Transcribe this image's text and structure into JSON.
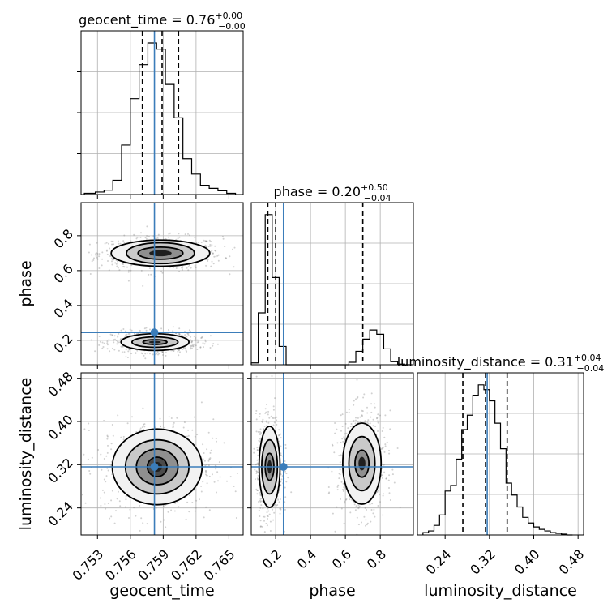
{
  "chart_data": {
    "type": "corner",
    "params": [
      "geocent_time",
      "phase",
      "luminosity_distance"
    ],
    "truth": {
      "geocent_time": 0.7582,
      "phase": 0.245,
      "luminosity_distance": 0.316
    },
    "truth_color": "#3b7dba",
    "grid": true,
    "axes": {
      "geocent_time": {
        "label": "geocent_time",
        "range": [
          0.7515,
          0.7663
        ],
        "ticks": [
          0.753,
          0.756,
          0.759,
          0.762,
          0.765
        ],
        "tick_labels": [
          "0.753",
          "0.756",
          "0.759",
          "0.762",
          "0.765"
        ]
      },
      "phase": {
        "label": "phase",
        "range": [
          0.06,
          0.99
        ],
        "ticks": [
          0.2,
          0.4,
          0.6,
          0.8
        ],
        "tick_labels": [
          "0.2",
          "0.4",
          "0.6",
          "0.8"
        ]
      },
      "luminosity_distance": {
        "label": "luminosity_distance",
        "range": [
          0.19,
          0.49
        ],
        "ticks": [
          0.24,
          0.32,
          0.4,
          0.48
        ],
        "tick_labels": [
          "0.24",
          "0.32",
          "0.40",
          "0.48"
        ]
      }
    },
    "marginals": [
      {
        "param": "geocent_time",
        "title": {
          "prefix": "geocent_time = ",
          "median": "0.76",
          "upper": "+0.00",
          "lower": "−0.00"
        },
        "quantiles": [
          0.7571,
          0.7589,
          0.7604
        ],
        "bin_edges": [
          0.7518,
          0.7528,
          0.7536,
          0.7544,
          0.7552,
          0.756,
          0.7568,
          0.7576,
          0.7584,
          0.7592,
          0.76,
          0.7608,
          0.7616,
          0.7624,
          0.7632,
          0.764,
          0.7648,
          0.7656
        ],
        "counts": [
          2,
          4,
          7,
          23,
          80,
          155,
          210,
          245,
          235,
          178,
          124,
          58,
          33,
          15,
          10,
          6,
          2
        ]
      },
      {
        "param": "phase",
        "title": {
          "prefix": "phase = ",
          "median": "0.20",
          "upper": "+0.50",
          "lower": "−0.04"
        },
        "quantiles": [
          0.155,
          0.2,
          0.7
        ],
        "bin_edges": [
          0.06,
          0.1,
          0.14,
          0.18,
          0.22,
          0.26,
          0.3,
          0.34,
          0.38,
          0.42,
          0.46,
          0.5,
          0.54,
          0.58,
          0.62,
          0.66,
          0.7,
          0.74,
          0.78,
          0.82,
          0.86,
          0.9,
          0.94,
          0.98
        ],
        "counts": [
          3,
          85,
          246,
          143,
          30,
          0,
          0,
          0,
          0,
          0,
          0,
          0,
          0,
          0,
          4,
          22,
          42,
          57,
          50,
          26,
          5,
          1,
          0
        ]
      },
      {
        "param": "luminosity_distance",
        "title": {
          "prefix": "luminosity_distance = ",
          "median": "0.31",
          "upper": "+0.04",
          "lower": "−0.04"
        },
        "quantiles": [
          0.272,
          0.313,
          0.352
        ],
        "bin_edges": [
          0.2,
          0.21,
          0.22,
          0.23,
          0.24,
          0.25,
          0.26,
          0.27,
          0.28,
          0.29,
          0.3,
          0.31,
          0.32,
          0.33,
          0.34,
          0.35,
          0.36,
          0.37,
          0.38,
          0.39,
          0.4,
          0.41,
          0.42,
          0.43,
          0.44,
          0.45,
          0.46,
          0.47
        ],
        "counts": [
          3,
          5,
          12,
          25,
          55,
          62,
          95,
          132,
          150,
          175,
          188,
          182,
          168,
          140,
          108,
          65,
          50,
          35,
          22,
          15,
          10,
          7,
          5,
          3,
          2,
          1,
          0
        ]
      }
    ],
    "joint": [
      {
        "x": "geocent_time",
        "y": "phase",
        "modes": [
          {
            "cx": 0.75875,
            "cy": 0.7,
            "rx": [
              0.00205,
              0.0031,
              0.0045
            ],
            "ry": [
              0.035,
              0.06,
              0.075
            ]
          },
          {
            "cx": 0.75825,
            "cy": 0.19,
            "rx": [
              0.0011,
              0.0021,
              0.0031
            ],
            "ry": [
              0.014,
              0.03,
              0.048
            ]
          }
        ]
      },
      {
        "x": "geocent_time",
        "y": "luminosity_distance",
        "modes": [
          {
            "cx": 0.75845,
            "cy": 0.316,
            "rx": [
              0.0009,
              0.0019,
              0.0029,
              0.0041
            ],
            "ry": [
              0.018,
              0.033,
              0.05,
              0.07
            ]
          }
        ]
      },
      {
        "x": "phase",
        "y": "luminosity_distance",
        "modes": [
          {
            "cx": 0.165,
            "cy": 0.316,
            "rx": [
              0.025,
              0.045,
              0.06
            ],
            "ry": [
              0.025,
              0.05,
              0.075
            ]
          },
          {
            "cx": 0.695,
            "cy": 0.322,
            "rx": [
              0.04,
              0.075,
              0.11
            ],
            "ry": [
              0.025,
              0.05,
              0.075
            ]
          }
        ]
      }
    ]
  }
}
